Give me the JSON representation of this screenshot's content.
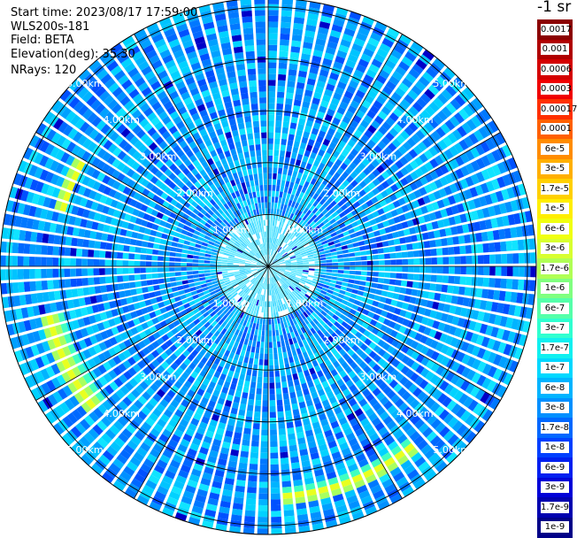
{
  "header": {
    "start_time": "Start time: 2023/08/17 17:59:00",
    "instrument": "WLS200s-181",
    "field": "Field: BETA",
    "elevation": "Elevation(deg): 35.30",
    "nrays": "NRays: 120"
  },
  "colorbar": {
    "unit": "-1 sr",
    "labels": [
      "0.0017",
      "0.001",
      "0.0006",
      "0.0003",
      "0.00017",
      "0.0001",
      "6e-5",
      "3e-5",
      "1.7e-5",
      "1e-5",
      "6e-6",
      "3e-6",
      "1.7e-6",
      "1e-6",
      "6e-7",
      "3e-7",
      "1.7e-7",
      "1e-7",
      "6e-8",
      "3e-8",
      "1.7e-8",
      "1e-8",
      "6e-9",
      "3e-9",
      "1.7e-9",
      "1e-9"
    ],
    "colors": [
      "#8b0000",
      "#b00000",
      "#d40000",
      "#f00000",
      "#ff3000",
      "#ff6000",
      "#ff8c00",
      "#ffb000",
      "#ffd000",
      "#ffee00",
      "#f0ff10",
      "#d8ff30",
      "#b0ff55",
      "#80ff80",
      "#55ffaa",
      "#30ffd0",
      "#10f0f0",
      "#00d8ff",
      "#00b4ff",
      "#0090ff",
      "#0068ff",
      "#0040ff",
      "#0020f0",
      "#0000d8",
      "#0000b0",
      "#000088"
    ]
  },
  "range_rings": {
    "labels": [
      "1.00km",
      "2.00km",
      "3.00km",
      "4.00km",
      "5.00km"
    ]
  },
  "chart_data": {
    "type": "heatmap",
    "projection": "polar-ppi",
    "title": "",
    "field": "BETA",
    "elevation_deg": 35.3,
    "n_rays": 120,
    "range_rings_km": [
      1,
      2,
      3,
      4,
      5
    ],
    "max_range_km": 5,
    "color_scale": "log",
    "value_range": [
      1e-09,
      0.0017
    ],
    "background_level": "1e-8 to 1e-7",
    "features": [
      {
        "name": "enhanced backscatter arc",
        "azimuth_deg_range": [
          285,
          300
        ],
        "range_km": [
          4.0,
          4.3
        ],
        "level": "3e-6 to 1e-5"
      },
      {
        "name": "enhanced backscatter arc",
        "azimuth_deg_range": [
          230,
          258
        ],
        "range_km": [
          4.1,
          4.5
        ],
        "level": "1e-6 to 6e-6"
      },
      {
        "name": "enhanced backscatter arc",
        "azimuth_deg_range": [
          140,
          178
        ],
        "range_km": [
          4.3,
          4.6
        ],
        "level": "1e-6 to 6e-6"
      }
    ]
  }
}
